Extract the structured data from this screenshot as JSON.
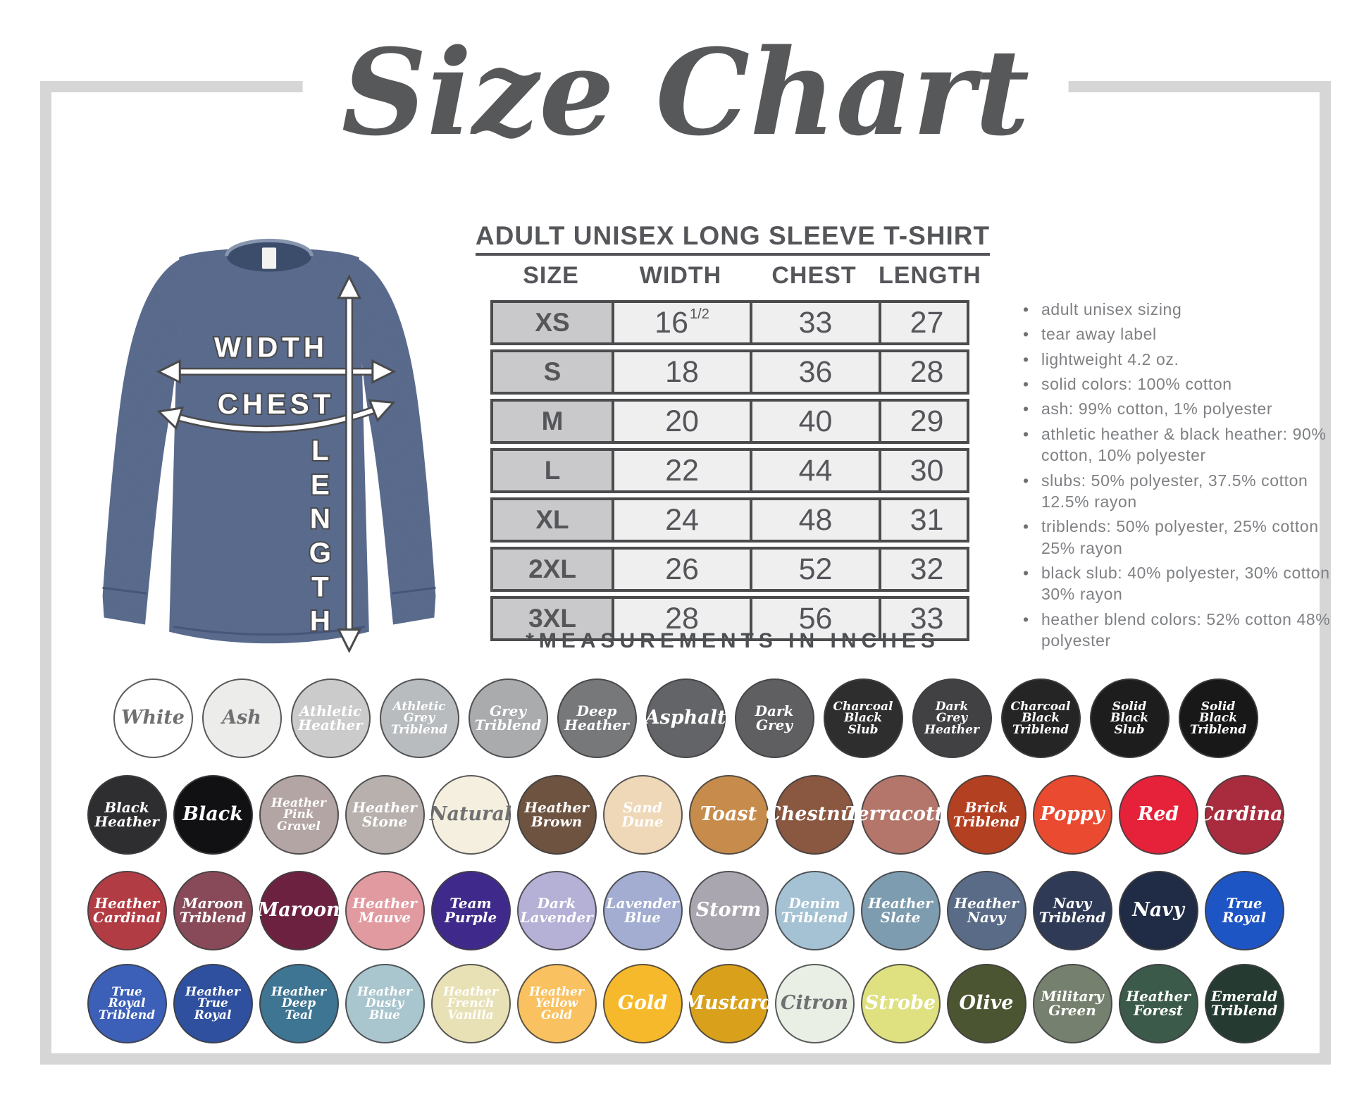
{
  "title": "Size Chart",
  "product_heading": "ADULT UNISEX LONG SLEEVE T-SHIRT",
  "diagram": {
    "width_label": "WIDTH",
    "chest_label": "CHEST",
    "length_label": "LENGTH",
    "shirt_color": "#55678a"
  },
  "size_table": {
    "columns": [
      "SIZE",
      "WIDTH",
      "CHEST",
      "LENGTH"
    ],
    "rows": [
      {
        "size": "XS",
        "width": "16",
        "frac": "1/2",
        "chest": "33",
        "length": "27"
      },
      {
        "size": "S",
        "width": "18",
        "frac": "",
        "chest": "36",
        "length": "28"
      },
      {
        "size": "M",
        "width": "20",
        "frac": "",
        "chest": "40",
        "length": "29"
      },
      {
        "size": "L",
        "width": "22",
        "frac": "",
        "chest": "44",
        "length": "30"
      },
      {
        "size": "XL",
        "width": "24",
        "frac": "",
        "chest": "48",
        "length": "31"
      },
      {
        "size": "2XL",
        "width": "26",
        "frac": "",
        "chest": "52",
        "length": "32"
      },
      {
        "size": "3XL",
        "width": "28",
        "frac": "",
        "chest": "56",
        "length": "33"
      }
    ],
    "footnote": "*MEASUREMENTS IN INCHES"
  },
  "details": [
    "adult unisex sizing",
    "tear away label",
    "lightweight 4.2 oz.",
    "solid colors: 100% cotton",
    "ash: 99% cotton, 1% polyester",
    "athletic heather & black heather: 90% cotton, 10% polyester",
    "slubs: 50% polyester, 37.5% cotton 12.5% rayon",
    "triblends: 50% polyester, 25% cotton 25% rayon",
    "black slub: 40% polyester, 30% cotton 30% rayon",
    "heather blend colors: 52% cotton 48% polyester"
  ],
  "swatch_rows": [
    [
      {
        "name": "White",
        "color": "#ffffff",
        "text": "dark"
      },
      {
        "name": "Ash",
        "color": "#ececea",
        "text": "dark"
      },
      {
        "name": "Athletic Heather",
        "color": "#cbcbcb",
        "text": "light"
      },
      {
        "name": "Athletic Grey Triblend",
        "color": "#b8bcbf",
        "text": "light"
      },
      {
        "name": "Grey Triblend",
        "color": "#a9abad",
        "text": "light"
      },
      {
        "name": "Deep Heather",
        "color": "#77787a",
        "text": "light"
      },
      {
        "name": "Asphalt",
        "color": "#636467",
        "text": "light"
      },
      {
        "name": "Dark Grey",
        "color": "#5f5f61",
        "text": "light"
      },
      {
        "name": "Charcoal Black Slub",
        "color": "#2f2e2f",
        "text": "light"
      },
      {
        "name": "Dark Grey Heather",
        "color": "#414143",
        "text": "light"
      },
      {
        "name": "Charcoal Black Triblend",
        "color": "#252526",
        "text": "light"
      },
      {
        "name": "Solid Black Slub",
        "color": "#1d1d1d",
        "text": "light"
      },
      {
        "name": "Solid Black Triblend",
        "color": "#181819",
        "text": "light"
      }
    ],
    [
      {
        "name": "Black Heather",
        "color": "#2e2e30",
        "text": "light"
      },
      {
        "name": "Black",
        "color": "#111113",
        "text": "light"
      },
      {
        "name": "Heather Pink Gravel",
        "color": "#b3a5a4",
        "text": "light"
      },
      {
        "name": "Heather Stone",
        "color": "#b7b0ac",
        "text": "light"
      },
      {
        "name": "Natural",
        "color": "#f4efdf",
        "text": "dark"
      },
      {
        "name": "Heather Brown",
        "color": "#6d5340",
        "text": "light"
      },
      {
        "name": "Sand Dune",
        "color": "#efd8b8",
        "text": "light"
      },
      {
        "name": "Toast",
        "color": "#c78c4c",
        "text": "light"
      },
      {
        "name": "Chestnut",
        "color": "#8a5741",
        "text": "light"
      },
      {
        "name": "Terracotta",
        "color": "#b4766a",
        "text": "light"
      },
      {
        "name": "Brick Triblend",
        "color": "#b34020",
        "text": "light"
      },
      {
        "name": "Poppy",
        "color": "#e94a30",
        "text": "light"
      },
      {
        "name": "Red",
        "color": "#e52239",
        "text": "light"
      },
      {
        "name": "Cardinal",
        "color": "#a82c3d",
        "text": "light"
      }
    ],
    [
      {
        "name": "Heather Cardinal",
        "color": "#b23c44",
        "text": "light"
      },
      {
        "name": "Maroon Triblend",
        "color": "#884a59",
        "text": "light"
      },
      {
        "name": "Maroon",
        "color": "#6d2140",
        "text": "light"
      },
      {
        "name": "Heather Mauve",
        "color": "#e29aa1",
        "text": "light"
      },
      {
        "name": "Team Purple",
        "color": "#3f2a8b",
        "text": "light"
      },
      {
        "name": "Dark Lavender",
        "color": "#b5b0d6",
        "text": "light"
      },
      {
        "name": "Lavender Blue",
        "color": "#a2add1",
        "text": "light"
      },
      {
        "name": "Storm",
        "color": "#a9a6af",
        "text": "light"
      },
      {
        "name": "Denim Triblend",
        "color": "#a4c2d3",
        "text": "light"
      },
      {
        "name": "Heather Slate",
        "color": "#7e9cb0",
        "text": "light"
      },
      {
        "name": "Heather Navy",
        "color": "#5a6b87",
        "text": "light"
      },
      {
        "name": "Navy Triblend",
        "color": "#2f3b56",
        "text": "light"
      },
      {
        "name": "Navy",
        "color": "#202b45",
        "text": "light"
      },
      {
        "name": "True Royal",
        "color": "#1e55c5",
        "text": "light"
      }
    ],
    [
      {
        "name": "True Royal Triblend",
        "color": "#3c5fb7",
        "text": "light"
      },
      {
        "name": "Heather True Royal",
        "color": "#2f509f",
        "text": "light"
      },
      {
        "name": "Heather Deep Teal",
        "color": "#3e7593",
        "text": "light"
      },
      {
        "name": "Heather Dusty Blue",
        "color": "#a9c5cd",
        "text": "light"
      },
      {
        "name": "Heather French Vanilla",
        "color": "#e9e1b6",
        "text": "light"
      },
      {
        "name": "Heather Yellow Gold",
        "color": "#f9c160",
        "text": "light"
      },
      {
        "name": "Gold",
        "color": "#f6b92b",
        "text": "light"
      },
      {
        "name": "Mustard",
        "color": "#d9a01b",
        "text": "light"
      },
      {
        "name": "Citron",
        "color": "#e9efe5",
        "text": "dark"
      },
      {
        "name": "Strobe",
        "color": "#dfe07f",
        "text": "light"
      },
      {
        "name": "Olive",
        "color": "#4c5531",
        "text": "light"
      },
      {
        "name": "Military Green",
        "color": "#76806e",
        "text": "light"
      },
      {
        "name": "Heather Forest",
        "color": "#3b5a4a",
        "text": "light"
      },
      {
        "name": "Emerald Triblend",
        "color": "#253a30",
        "text": "light"
      }
    ]
  ]
}
